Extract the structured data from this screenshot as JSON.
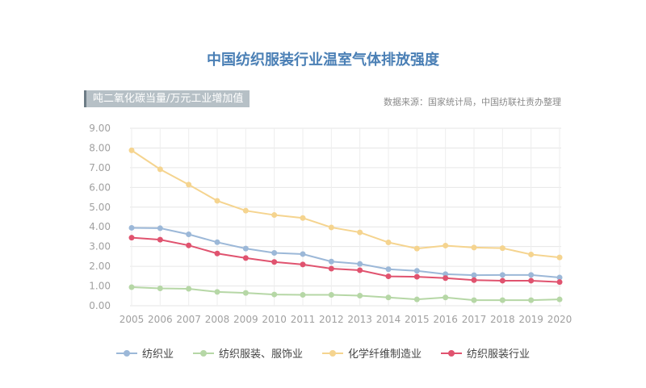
{
  "chart_data": {
    "type": "line",
    "title": "中国纺织服装行业温室气体排放强度",
    "ylabel": "吨二氧化碳当量/万元工业增加值",
    "source": "数据来源：国家统计局，中国纺联社责办整理",
    "ylim": [
      0,
      9
    ],
    "ytick_labels": [
      "0.00",
      "1.00",
      "2.00",
      "3.00",
      "4.00",
      "5.00",
      "6.00",
      "7.00",
      "8.00",
      "9.00"
    ],
    "categories": [
      "2005",
      "2006",
      "2007",
      "2008",
      "2009",
      "2010",
      "2011",
      "2012",
      "2013",
      "2014",
      "2015",
      "2016",
      "2017",
      "2018",
      "2019",
      "2020"
    ],
    "series": [
      {
        "name": "纺织业",
        "color": "#9cb8d8",
        "values": [
          3.95,
          3.93,
          3.62,
          3.22,
          2.9,
          2.68,
          2.62,
          2.24,
          2.12,
          1.85,
          1.77,
          1.6,
          1.55,
          1.56,
          1.56,
          1.43
        ]
      },
      {
        "name": "纺织服装、服饰业",
        "color": "#b6d7a6",
        "values": [
          0.94,
          0.88,
          0.86,
          0.7,
          0.65,
          0.57,
          0.55,
          0.55,
          0.51,
          0.42,
          0.32,
          0.42,
          0.28,
          0.28,
          0.28,
          0.32
        ]
      },
      {
        "name": "化学纤维制造业",
        "color": "#f5d48f",
        "values": [
          7.88,
          6.92,
          6.14,
          5.32,
          4.82,
          4.6,
          4.45,
          3.97,
          3.72,
          3.21,
          2.9,
          3.05,
          2.95,
          2.92,
          2.6,
          2.45
        ]
      },
      {
        "name": "纺织服装行业",
        "color": "#e0536f",
        "values": [
          3.45,
          3.35,
          3.06,
          2.65,
          2.42,
          2.22,
          2.09,
          1.88,
          1.8,
          1.49,
          1.47,
          1.4,
          1.3,
          1.27,
          1.27,
          1.2
        ]
      }
    ]
  }
}
